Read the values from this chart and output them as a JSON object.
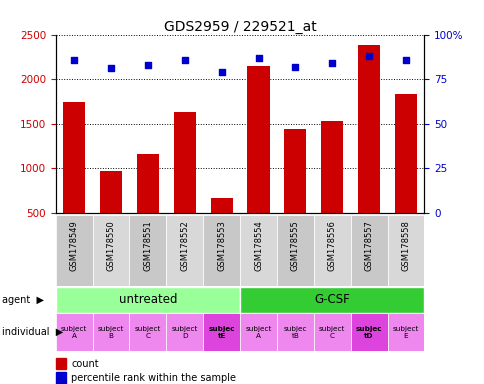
{
  "title": "GDS2959 / 229521_at",
  "samples": [
    "GSM178549",
    "GSM178550",
    "GSM178551",
    "GSM178552",
    "GSM178553",
    "GSM178554",
    "GSM178555",
    "GSM178556",
    "GSM178557",
    "GSM178558"
  ],
  "counts": [
    1740,
    975,
    1160,
    1630,
    670,
    2150,
    1440,
    1530,
    2380,
    1830
  ],
  "percentile_ranks": [
    86,
    81,
    83,
    86,
    79,
    87,
    82,
    84,
    88,
    86
  ],
  "ylim_left": [
    500,
    2500
  ],
  "ylim_right": [
    0,
    100
  ],
  "yticks_left": [
    500,
    1000,
    1500,
    2000,
    2500
  ],
  "yticks_right": [
    0,
    25,
    50,
    75,
    100
  ],
  "bar_color": "#cc0000",
  "dot_color": "#0000cc",
  "agent_groups": [
    {
      "label": "untreated",
      "start": 0,
      "end": 5,
      "color": "#99ff99"
    },
    {
      "label": "G-CSF",
      "start": 5,
      "end": 10,
      "color": "#33cc33"
    }
  ],
  "individual_labels": [
    "subject\nA",
    "subject\nB",
    "subject\nC",
    "subject\nD",
    "subjec\ntE",
    "subject\nA",
    "subjec\ntB",
    "subject\nC",
    "subjec\ntD",
    "subject\nE"
  ],
  "individual_bold": [
    4,
    8
  ],
  "individual_color_light": "#ee88ee",
  "individual_color_dark": "#dd44dd",
  "agent_label": "agent",
  "individual_label": "individual",
  "legend_count_label": "count",
  "legend_percentile_label": "percentile rank within the sample",
  "tick_color_left": "#cc0000",
  "tick_color_right": "#0000cc",
  "bar_width": 0.6,
  "sample_row_bg": "#cccccc",
  "arrow": "▶"
}
